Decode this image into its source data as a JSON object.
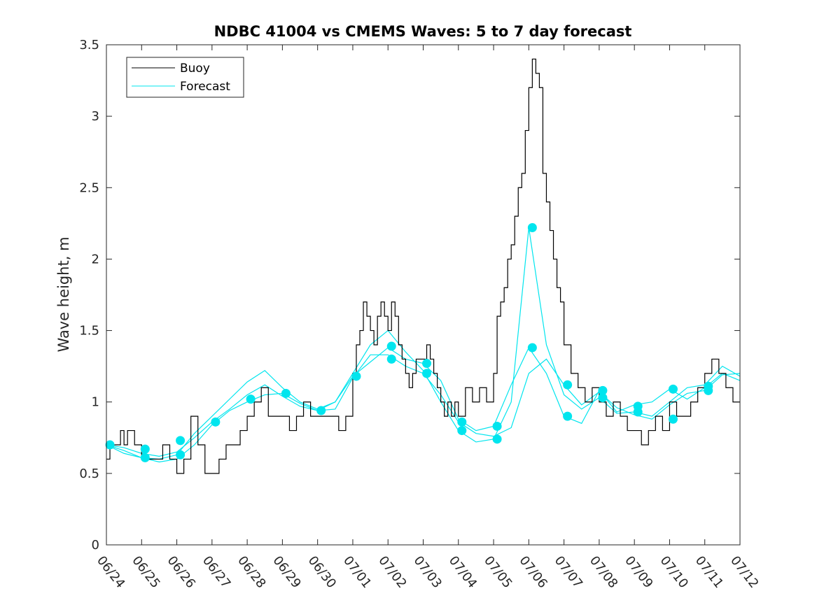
{
  "chart_data": {
    "type": "line",
    "title": "NDBC 41004 vs CMEMS Waves: 5 to 7 day forecast",
    "xlabel": "",
    "ylabel": "Wave height, m",
    "xlim": [
      "06/24",
      "07/12"
    ],
    "ylim": [
      0,
      3.5
    ],
    "x_ticks": [
      "06/24",
      "06/25",
      "06/26",
      "06/27",
      "06/28",
      "06/29",
      "06/30",
      "07/01",
      "07/02",
      "07/03",
      "07/04",
      "07/05",
      "07/06",
      "07/07",
      "07/08",
      "07/09",
      "07/10",
      "07/11",
      "07/12"
    ],
    "y_ticks": [
      "0",
      "0.5",
      "1",
      "1.5",
      "2",
      "2.5",
      "3",
      "3.5"
    ],
    "grid": false,
    "legend": {
      "placement": "top-left",
      "entries": [
        "Buoy",
        "Forecast"
      ]
    },
    "colors": {
      "buoy": "#000000",
      "forecast": "#00e5ee"
    },
    "note_x_units": "days after 06/24 00:00",
    "series": [
      {
        "name": "Buoy",
        "x": [
          0,
          0.1,
          0.2,
          0.3,
          0.4,
          0.5,
          0.6,
          0.7,
          0.8,
          0.9,
          1.0,
          1.2,
          1.4,
          1.6,
          1.8,
          2.0,
          2.2,
          2.4,
          2.6,
          2.8,
          3.0,
          3.2,
          3.4,
          3.6,
          3.8,
          4.0,
          4.2,
          4.4,
          4.6,
          4.8,
          5.0,
          5.2,
          5.4,
          5.6,
          5.8,
          6.0,
          6.2,
          6.4,
          6.6,
          6.8,
          7.0,
          7.1,
          7.2,
          7.3,
          7.4,
          7.5,
          7.6,
          7.7,
          7.8,
          7.9,
          8.0,
          8.1,
          8.2,
          8.3,
          8.4,
          8.5,
          8.6,
          8.7,
          8.8,
          8.9,
          9.0,
          9.1,
          9.2,
          9.3,
          9.4,
          9.5,
          9.6,
          9.7,
          9.8,
          9.9,
          10.0,
          10.2,
          10.4,
          10.6,
          10.8,
          11.0,
          11.1,
          11.2,
          11.3,
          11.4,
          11.5,
          11.6,
          11.7,
          11.8,
          11.9,
          12.0,
          12.1,
          12.2,
          12.3,
          12.4,
          12.5,
          12.6,
          12.7,
          12.8,
          12.9,
          13.0,
          13.2,
          13.4,
          13.6,
          13.8,
          14.0,
          14.2,
          14.4,
          14.6,
          14.8,
          15.0,
          15.2,
          15.4,
          15.6,
          15.8,
          16.0,
          16.2,
          16.4,
          16.6,
          16.8,
          17.0,
          17.2,
          17.4,
          17.6,
          17.8,
          18.0
        ],
        "values": [
          0.6,
          0.7,
          0.7,
          0.7,
          0.8,
          0.7,
          0.8,
          0.8,
          0.7,
          0.7,
          0.6,
          0.6,
          0.6,
          0.7,
          0.6,
          0.5,
          0.6,
          0.9,
          0.7,
          0.5,
          0.5,
          0.6,
          0.7,
          0.7,
          0.8,
          0.9,
          1.0,
          1.1,
          0.9,
          0.9,
          0.9,
          0.8,
          0.9,
          1.0,
          0.9,
          0.9,
          0.9,
          0.9,
          0.8,
          0.9,
          1.2,
          1.4,
          1.5,
          1.7,
          1.6,
          1.5,
          1.4,
          1.6,
          1.7,
          1.6,
          1.5,
          1.7,
          1.6,
          1.4,
          1.3,
          1.2,
          1.1,
          1.2,
          1.3,
          1.3,
          1.3,
          1.4,
          1.3,
          1.2,
          1.1,
          1.0,
          0.9,
          1.0,
          0.9,
          1.0,
          0.9,
          1.1,
          1.0,
          1.1,
          1.0,
          1.2,
          1.6,
          1.7,
          1.8,
          2.0,
          2.1,
          2.3,
          2.5,
          2.6,
          2.9,
          3.2,
          3.4,
          3.3,
          3.2,
          2.6,
          2.4,
          2.2,
          2.0,
          1.8,
          1.7,
          1.4,
          1.2,
          1.1,
          1.0,
          1.1,
          1.0,
          0.9,
          1.0,
          0.9,
          0.8,
          0.8,
          0.7,
          0.8,
          0.9,
          0.8,
          1.0,
          0.9,
          0.9,
          1.0,
          1.1,
          1.2,
          1.3,
          1.2,
          1.1,
          1.0,
          1.0
        ]
      },
      {
        "name": "Forecast",
        "x": [
          0,
          0.5,
          1.0,
          1.5,
          2.0,
          2.5,
          3.0,
          3.5,
          4.0,
          4.5,
          5.0,
          5.5,
          6.0,
          6.5,
          7.0,
          7.5,
          8.0,
          8.5,
          9.0,
          9.5,
          10.0,
          10.5,
          11.0,
          11.5,
          12.0,
          12.5,
          13.0,
          13.5,
          14.0,
          14.5,
          15.0,
          15.5,
          16.0,
          16.5,
          17.0,
          17.5,
          18.0
        ],
        "values": [
          0.7,
          0.68,
          0.64,
          0.62,
          0.65,
          0.75,
          0.86,
          0.95,
          1.05,
          1.12,
          1.04,
          0.97,
          0.94,
          0.95,
          1.17,
          1.33,
          1.33,
          1.25,
          1.2,
          1.05,
          0.86,
          0.78,
          0.76,
          0.82,
          1.2,
          1.3,
          1.12,
          0.98,
          1.07,
          0.96,
          0.91,
          0.88,
          0.98,
          1.06,
          1.08,
          1.19,
          1.2
        ]
      },
      {
        "name": "Forecast",
        "x": [
          0,
          0.5,
          1.0,
          1.5,
          2.0,
          2.5,
          3.0,
          3.5,
          4.0,
          4.5,
          5.0,
          5.5,
          6.0,
          6.5,
          7.0,
          7.5,
          8.0,
          8.5,
          9.0,
          9.5,
          10.0,
          10.5,
          11.0,
          11.5,
          12.0,
          12.5,
          13.0,
          13.5,
          14.0,
          14.5,
          15.0,
          15.5,
          16.0,
          16.5,
          17.0,
          17.5,
          18.0
        ],
        "values": [
          0.7,
          0.66,
          0.61,
          0.6,
          0.63,
          0.78,
          0.9,
          1.02,
          1.14,
          1.22,
          1.1,
          1.0,
          0.95,
          1.0,
          1.2,
          1.4,
          1.5,
          1.35,
          1.22,
          1.0,
          0.8,
          0.72,
          0.74,
          1.0,
          2.22,
          1.4,
          1.05,
          0.95,
          1.03,
          0.92,
          0.93,
          0.9,
          1.0,
          1.1,
          1.12,
          1.25,
          1.18
        ]
      },
      {
        "name": "Forecast",
        "x": [
          0,
          0.5,
          1.0,
          1.5,
          2.0,
          2.5,
          3.0,
          3.5,
          4.0,
          4.5,
          5.0,
          5.5,
          6.0,
          6.5,
          7.0,
          7.5,
          8.0,
          8.5,
          9.0,
          9.5,
          10.0,
          10.5,
          11.0,
          11.5,
          12.0,
          12.5,
          13.0,
          13.5,
          14.0,
          14.5,
          15.0,
          15.5,
          16.0,
          16.5,
          17.0,
          17.5,
          18.0
        ],
        "values": [
          0.7,
          0.64,
          0.61,
          0.58,
          0.6,
          0.7,
          0.84,
          0.94,
          1.0,
          1.05,
          1.06,
          0.99,
          0.94,
          1.0,
          1.18,
          1.28,
          1.38,
          1.3,
          1.27,
          1.15,
          0.88,
          0.8,
          0.83,
          1.12,
          1.38,
          1.2,
          0.9,
          0.85,
          1.08,
          0.93,
          0.98,
          1.0,
          1.09,
          1.02,
          1.1,
          1.2,
          1.15
        ]
      }
    ],
    "markers": {
      "series": "Forecast",
      "x": [
        0.1,
        1.1,
        1.1,
        2.1,
        2.1,
        3.1,
        4.1,
        5.1,
        6.1,
        7.1,
        8.1,
        8.1,
        9.1,
        9.1,
        10.1,
        10.1,
        11.1,
        11.1,
        12.1,
        12.1,
        13.1,
        13.1,
        14.1,
        14.1,
        15.1,
        15.1,
        16.1,
        16.1,
        17.1,
        17.1
      ],
      "values": [
        0.7,
        0.67,
        0.61,
        0.73,
        0.63,
        0.86,
        1.02,
        1.06,
        0.94,
        1.18,
        1.39,
        1.3,
        1.27,
        1.2,
        0.86,
        0.8,
        0.83,
        0.74,
        2.22,
        1.38,
        1.12,
        0.9,
        1.08,
        1.03,
        0.97,
        0.93,
        1.09,
        0.88,
        1.11,
        1.08
      ]
    }
  }
}
